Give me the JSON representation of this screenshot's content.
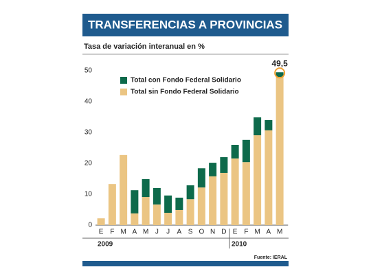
{
  "chart_data": {
    "type": "bar",
    "stacked": true,
    "title": "TRANSFERENCIAS A PROVINCIAS",
    "subtitle": "Tasa de variación interanual en %",
    "source": "Fuente: IERAL",
    "annotation": "49,5",
    "years": [
      "2009",
      "2010"
    ],
    "categories": [
      "E",
      "F",
      "M",
      "A",
      "M",
      "J",
      "J",
      "A",
      "S",
      "O",
      "N",
      "D",
      "E",
      "F",
      "M",
      "A",
      "M"
    ],
    "series": [
      {
        "name": "Total sin Fondo Federal Solidario",
        "color": "#ebc583",
        "values": [
          2.2,
          13.3,
          22.7,
          3.8,
          9.1,
          6.7,
          4,
          4.9,
          8.4,
          12.2,
          15.8,
          16.9,
          21.6,
          20.4,
          29.1,
          30.7,
          48
        ]
      },
      {
        "name": "Total con Fondo Federal Solidario",
        "color": "#0e6a4b",
        "values": [
          null,
          null,
          null,
          7.5,
          5.8,
          5.3,
          5.6,
          4,
          4.5,
          6.2,
          4.4,
          5.1,
          4.4,
          7.2,
          5.8,
          3.3,
          1.5
        ]
      }
    ],
    "ylim": [
      0,
      50
    ],
    "yticks": [
      0,
      10,
      20,
      30,
      40,
      50
    ]
  }
}
